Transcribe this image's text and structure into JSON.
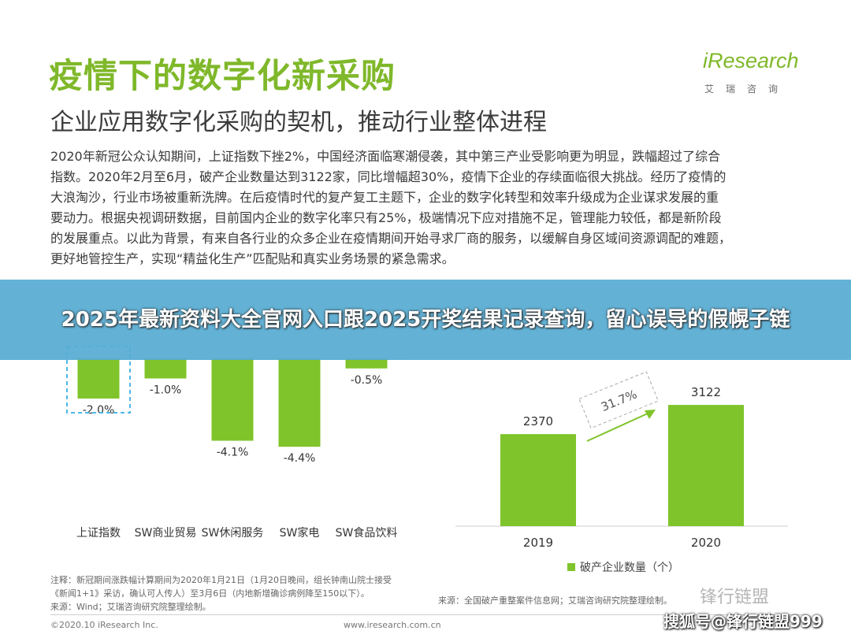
{
  "header": {
    "title": "疫情下的数字化新采购",
    "subtitle": "企业应用数字化采购的契机，推动行业整体进程",
    "logo_main": "iResearch",
    "logo_sub": "艾瑞咨询"
  },
  "body_lines": [
    "2020年新冠公众认知期间，上证指数下挫2%，中国经济面临寒潮侵袭，其中第三产业受影响更为明显，跌幅超过了综合",
    "指数。2020年2月至6月，破产企业数量达到3122家，同比增幅超30%，疫情下企业的存续面临很大挑战。经历了疫情的",
    "大浪淘沙，行业市场被重新洗牌。在后疫情时代的复产复工主题下，企业的数字化转型和效率升级成为企业谋求发展的重",
    "要动力。根据央视调研数据，目前国内企业的数字化率只有25%，极端情况下应对措施不足，管理能力较低，都是新阶段",
    "的发展重点。以此为背景，有来自各行业的众多企业在疫情期间开始寻求厂商的服务，以缓解自身区域间资源调配的难题，",
    "更好地管控生产，实现“精益化生产”匹配贴和真实业务场景的紧急需求。"
  ],
  "banner": {
    "text": "2025年最新资料大全官网入口跟2025开奖结果记录查询，留心误导的假幌子链"
  },
  "chart_data": [
    {
      "type": "bar",
      "categories": [
        "上证指数",
        "SW商业贸易",
        "SW休闲服务",
        "SW家电",
        "SW食品饮料"
      ],
      "values": [
        -2.0,
        -1.0,
        -4.1,
        -4.4,
        -0.5
      ],
      "value_labels": [
        "-2.0%",
        "-1.0%",
        "-4.1%",
        "-4.4%",
        "-0.5%"
      ],
      "highlight_index": 0,
      "colors": {
        "bar": "#7fc42a",
        "highlight_border": "#4db8e8"
      }
    },
    {
      "type": "bar",
      "categories": [
        "2019",
        "2020"
      ],
      "values": [
        2370,
        3122
      ],
      "value_labels": [
        "2370",
        "3122"
      ],
      "growth_label": "31.7%",
      "legend": "破产企业数量（个）",
      "colors": {
        "bar": "#7fc42a"
      }
    }
  ],
  "notes": {
    "left": [
      "注释：新冠期间涨跌幅计算期间为2020年1月21日（1月20日晚间，组长钟南山院士接受",
      "《新闻1+1》采访，确认可人传人）至3月6日（内地新增确诊病例降至150以下）。",
      "来源：Wind；艾瑞咨询研究院整理绘制。"
    ],
    "right": "来源：全国破产重整案件信息网；艾瑞咨询研究院整理绘制。"
  },
  "footer": {
    "copyright": "©2020.10 iResearch Inc.",
    "site": "www.iresearch.com.cn"
  },
  "watermarks": {
    "brand": "锋行链盟",
    "account": "搜狐号@锋行链盟999"
  }
}
